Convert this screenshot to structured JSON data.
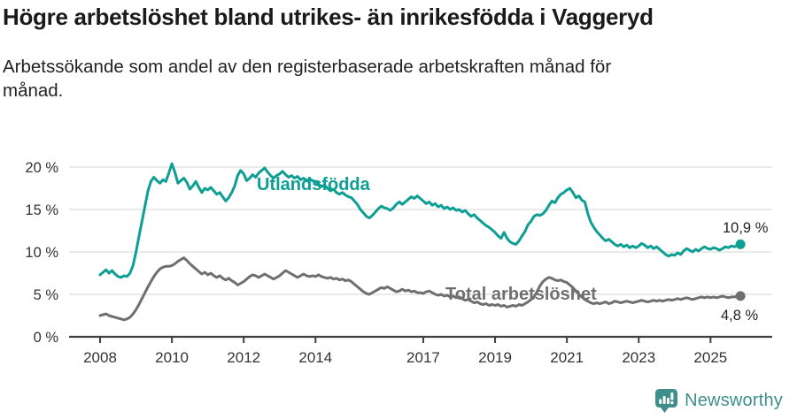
{
  "header": {
    "title": "Högre arbetslöshet bland utrikes- än inrikesfödda i Vaggeryd",
    "subtitle": "Arbetssökande som andel av den registerbaserade arbetskraften månad för månad."
  },
  "footer": {
    "brand": "Newsworthy"
  },
  "colors": {
    "accent_teal": "#0d9e94",
    "series_gray": "#6f6f6f",
    "grid": "#dedede",
    "axis": "#3f3f3f",
    "tick_label": "#333333",
    "value_label": "#222222",
    "brand": "#3e8f8b"
  },
  "chart_data": {
    "type": "line",
    "title": "Högre arbetslöshet bland utrikes- än inrikesfödda i Vaggeryd",
    "xlabel": "",
    "ylabel": "",
    "x_start_year": 2008,
    "frequency": "monthly",
    "ylim": [
      0,
      21.5
    ],
    "grid": "horizontal",
    "x_ticks": [
      2008,
      2010,
      2012,
      2014,
      2017,
      2019,
      2021,
      2023,
      2025
    ],
    "x_tick_labels": [
      "2008",
      "2010",
      "2012",
      "2014",
      "2017",
      "2019",
      "2021",
      "2023",
      "2025"
    ],
    "y_tick_values": [
      0,
      5,
      10,
      15,
      20
    ],
    "y_tick_labels": [
      "0 %",
      "5 %",
      "10 %",
      "15 %",
      "20 %"
    ],
    "series": [
      {
        "name": "Utlandsfödda",
        "color": "#0d9e94",
        "end_label": "10,9 %",
        "end_value": 10.9,
        "values": [
          7.3,
          7.6,
          7.9,
          7.5,
          7.8,
          7.4,
          7.1,
          7.0,
          7.2,
          7.1,
          7.5,
          8.4,
          10.0,
          11.8,
          13.6,
          15.4,
          17.2,
          18.3,
          18.8,
          18.4,
          18.1,
          18.5,
          18.3,
          19.3,
          20.4,
          19.4,
          18.1,
          18.4,
          18.7,
          18.2,
          17.4,
          17.8,
          18.3,
          17.6,
          17.0,
          17.5,
          17.3,
          17.6,
          17.2,
          16.8,
          17.0,
          16.5,
          16.0,
          16.4,
          17.0,
          17.8,
          19.0,
          19.6,
          19.2,
          18.4,
          18.7,
          19.1,
          18.8,
          19.3,
          19.6,
          19.9,
          19.4,
          19.0,
          18.7,
          19.0,
          19.2,
          19.5,
          19.1,
          18.8,
          19.0,
          18.7,
          18.9,
          18.5,
          18.7,
          18.4,
          18.6,
          18.4,
          18.3,
          18.0,
          17.7,
          17.9,
          17.5,
          17.2,
          17.4,
          17.0,
          16.8,
          17.0,
          16.7,
          16.5,
          16.4,
          16.0,
          15.6,
          15.0,
          14.6,
          14.2,
          14.0,
          14.3,
          14.7,
          15.1,
          15.4,
          15.2,
          15.1,
          14.9,
          15.2,
          15.6,
          15.9,
          15.6,
          15.9,
          16.2,
          16.5,
          16.3,
          16.6,
          16.3,
          16.0,
          15.7,
          15.9,
          15.5,
          15.7,
          15.3,
          15.5,
          15.1,
          15.3,
          15.0,
          15.2,
          14.9,
          15.0,
          14.7,
          14.9,
          14.5,
          14.2,
          14.4,
          14.0,
          13.7,
          13.4,
          13.1,
          12.9,
          12.6,
          12.3,
          11.9,
          11.6,
          12.3,
          11.6,
          11.2,
          11.0,
          10.9,
          11.3,
          11.9,
          12.4,
          13.2,
          13.6,
          14.2,
          14.4,
          14.3,
          14.5,
          14.9,
          15.5,
          16.0,
          15.8,
          16.4,
          16.8,
          17.0,
          17.3,
          17.5,
          17.0,
          16.4,
          16.6,
          16.1,
          15.9,
          14.5,
          13.5,
          12.9,
          12.4,
          12.0,
          11.6,
          11.3,
          11.5,
          11.2,
          10.9,
          10.7,
          10.9,
          10.6,
          10.8,
          10.5,
          10.7,
          10.5,
          10.7,
          11.0,
          10.8,
          10.5,
          10.7,
          10.4,
          10.6,
          10.3,
          10.0,
          9.7,
          9.5,
          9.7,
          9.6,
          9.9,
          9.7,
          10.1,
          10.4,
          10.2,
          10.0,
          10.3,
          10.1,
          10.4,
          10.6,
          10.4,
          10.3,
          10.5,
          10.4,
          10.2,
          10.4,
          10.6,
          10.5,
          10.7,
          10.6,
          10.8,
          10.9
        ]
      },
      {
        "name": "Total arbetslöshet",
        "color": "#6f6f6f",
        "end_label": "4,8 %",
        "end_value": 4.8,
        "values": [
          2.5,
          2.6,
          2.7,
          2.5,
          2.4,
          2.3,
          2.2,
          2.1,
          2.0,
          2.1,
          2.3,
          2.7,
          3.2,
          3.8,
          4.5,
          5.2,
          5.9,
          6.5,
          7.1,
          7.6,
          8.0,
          8.2,
          8.3,
          8.3,
          8.4,
          8.6,
          8.9,
          9.1,
          9.3,
          9.0,
          8.6,
          8.3,
          8.0,
          7.7,
          7.4,
          7.6,
          7.3,
          7.5,
          7.2,
          7.0,
          7.2,
          6.9,
          6.7,
          6.9,
          6.6,
          6.4,
          6.1,
          6.3,
          6.5,
          6.8,
          7.1,
          7.3,
          7.2,
          7.0,
          7.2,
          7.4,
          7.2,
          7.0,
          6.8,
          7.0,
          7.2,
          7.5,
          7.8,
          7.6,
          7.4,
          7.2,
          7.0,
          7.2,
          7.4,
          7.2,
          7.1,
          7.2,
          7.1,
          7.3,
          7.1,
          7.0,
          6.9,
          7.0,
          6.8,
          6.9,
          6.7,
          6.8,
          6.6,
          6.7,
          6.5,
          6.2,
          5.9,
          5.6,
          5.3,
          5.1,
          5.0,
          5.2,
          5.4,
          5.6,
          5.8,
          5.7,
          5.9,
          5.7,
          5.5,
          5.3,
          5.4,
          5.6,
          5.4,
          5.5,
          5.3,
          5.4,
          5.2,
          5.2,
          5.1,
          5.3,
          5.4,
          5.2,
          5.0,
          4.9,
          5.0,
          4.8,
          4.9,
          4.7,
          4.8,
          4.6,
          4.7,
          4.5,
          4.3,
          4.4,
          4.2,
          4.0,
          4.1,
          3.9,
          3.8,
          3.9,
          3.7,
          3.8,
          3.7,
          3.8,
          3.6,
          3.7,
          3.5,
          3.6,
          3.7,
          3.6,
          3.8,
          3.7,
          3.9,
          4.1,
          4.4,
          4.7,
          5.3,
          6.0,
          6.5,
          6.8,
          7.0,
          6.9,
          6.7,
          6.6,
          6.7,
          6.5,
          6.4,
          6.1,
          5.8,
          5.4,
          5.0,
          4.7,
          4.4,
          4.2,
          4.0,
          3.9,
          4.0,
          3.9,
          4.0,
          4.1,
          3.9,
          4.0,
          4.2,
          4.1,
          4.0,
          4.1,
          4.2,
          4.1,
          4.0,
          4.1,
          4.2,
          4.3,
          4.2,
          4.1,
          4.2,
          4.3,
          4.2,
          4.3,
          4.2,
          4.3,
          4.4,
          4.3,
          4.4,
          4.5,
          4.4,
          4.5,
          4.6,
          4.5,
          4.4,
          4.5,
          4.6,
          4.7,
          4.6,
          4.7,
          4.6,
          4.7,
          4.6,
          4.7,
          4.8,
          4.7,
          4.6,
          4.7,
          4.7,
          4.8,
          4.8
        ]
      }
    ],
    "legend_position": "inline-labels"
  }
}
